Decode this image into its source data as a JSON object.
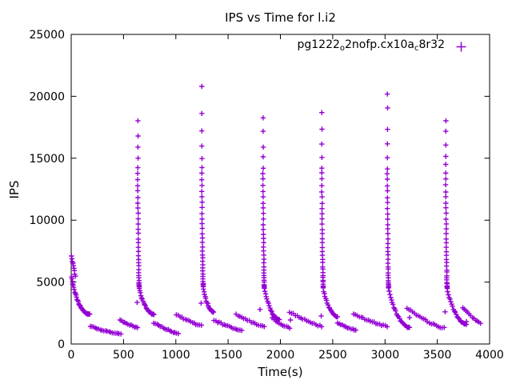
{
  "window": {
    "title": "IPS vs Time for l.i2"
  },
  "chart_data": {
    "type": "scatter",
    "title": "IPS vs Time for l.i2",
    "xlabel": "Time(s)",
    "ylabel": "IPS",
    "xlim": [
      0,
      4000
    ],
    "ylim": [
      0,
      25000
    ],
    "xticks": [
      0,
      500,
      1000,
      1500,
      2000,
      2500,
      3000,
      3500,
      4000
    ],
    "yticks": [
      0,
      5000,
      10000,
      15000,
      20000,
      25000
    ],
    "grid": false,
    "legend_position": "top-right-inside",
    "axis_color": "#000000",
    "background": "#ffffff",
    "cycle_peaks": [
      {
        "t": 0,
        "peak_ips": 7050
      },
      {
        "t": 638,
        "peak_ips": 17950
      },
      {
        "t": 1250,
        "peak_ips": 20740
      },
      {
        "t": 1835,
        "peak_ips": 18340
      },
      {
        "t": 2397,
        "peak_ips": 18660
      },
      {
        "t": 3023,
        "peak_ips": 20150
      },
      {
        "t": 3582,
        "peak_ips": 17950
      }
    ],
    "series": [
      {
        "name": "pg1222o2nofp.cx10ac8r32",
        "label_parts": [
          {
            "text": "pg1222",
            "sub": false
          },
          {
            "text": "o",
            "sub": true
          },
          {
            "text": "2nofp.cx10a",
            "sub": false
          },
          {
            "text": "c",
            "sub": true
          },
          {
            "text": "8r32",
            "sub": false
          }
        ],
        "color": "#9400d3",
        "marker": "plus",
        "segments": [
          {
            "type": "run",
            "t0": 2,
            "t1": 40,
            "ips0": 7050,
            "ips1": 5500,
            "n": 9,
            "tk": 1,
            "yk": 1
          },
          {
            "type": "run",
            "t0": 5,
            "t1": 176,
            "ips0": 5450,
            "ips1": 2400,
            "n": 30,
            "tk": 1.25,
            "yk": 1.9
          },
          {
            "type": "run",
            "t0": 184,
            "t1": 474,
            "ips0": 1430,
            "ips1": 800,
            "n": 19,
            "tk": 1,
            "yk": 1.25
          },
          {
            "type": "run",
            "t0": 466,
            "t1": 636,
            "ips0": 1920,
            "ips1": 1330,
            "n": 12,
            "tk": 1,
            "yk": 1.25
          },
          {
            "type": "col",
            "t": 638,
            "ips": [
              17950,
              16800,
              15950,
              15000,
              14250
            ]
          },
          {
            "type": "run",
            "t0": 636,
            "t1": 650,
            "ips0": 13800,
            "ips1": 4600,
            "n": 30,
            "tk": 1,
            "yk": 1.6
          },
          {
            "type": "run",
            "t0": 650,
            "t1": 790,
            "ips0": 4500,
            "ips1": 2400,
            "n": 20,
            "tk": 1.15,
            "yk": 1.8
          },
          {
            "type": "run",
            "t0": 790,
            "t1": 1022,
            "ips0": 1700,
            "ips1": 860,
            "n": 16,
            "tk": 1,
            "yk": 1.25
          },
          {
            "type": "run",
            "t0": 1005,
            "t1": 1245,
            "ips0": 2380,
            "ips1": 1480,
            "n": 15,
            "tk": 1,
            "yk": 1.25
          },
          {
            "type": "col",
            "t": 1250,
            "ips": [
              20740,
              18600,
              17200,
              15950,
              15000,
              14200
            ]
          },
          {
            "type": "run",
            "t0": 1248,
            "t1": 1262,
            "ips0": 13800,
            "ips1": 4700,
            "n": 30,
            "tk": 1,
            "yk": 1.6
          },
          {
            "type": "run",
            "t0": 1262,
            "t1": 1361,
            "ips0": 4600,
            "ips1": 2590,
            "n": 18,
            "tk": 1.15,
            "yk": 1.8
          },
          {
            "type": "run",
            "t0": 1365,
            "t1": 1630,
            "ips0": 1900,
            "ips1": 1090,
            "n": 17,
            "tk": 1,
            "yk": 1.25
          },
          {
            "type": "run",
            "t0": 1578,
            "t1": 1845,
            "ips0": 2400,
            "ips1": 1430,
            "n": 16,
            "tk": 1,
            "yk": 1.25
          },
          {
            "type": "col",
            "t": 1835,
            "ips": [
              18340,
              17100,
              15950,
              15050,
              14150
            ]
          },
          {
            "type": "run",
            "t0": 1833,
            "t1": 1847,
            "ips0": 13800,
            "ips1": 4600,
            "n": 30,
            "tk": 1,
            "yk": 1.6
          },
          {
            "type": "run",
            "t0": 1847,
            "t1": 1990,
            "ips0": 4500,
            "ips1": 1950,
            "n": 20,
            "tk": 1.15,
            "yk": 1.8
          },
          {
            "type": "run",
            "t0": 1920,
            "t1": 2090,
            "ips0": 2070,
            "ips1": 1300,
            "n": 11,
            "tk": 1,
            "yk": 1.25
          },
          {
            "type": "run",
            "t0": 2088,
            "t1": 2395,
            "ips0": 2590,
            "ips1": 1430,
            "n": 18,
            "tk": 1,
            "yk": 1.25
          },
          {
            "type": "col",
            "t": 2397,
            "ips": [
              18660,
              17300,
              16100,
              15050,
              14150
            ]
          },
          {
            "type": "run",
            "t0": 2395,
            "t1": 2409,
            "ips0": 13800,
            "ips1": 4600,
            "n": 30,
            "tk": 1,
            "yk": 1.6
          },
          {
            "type": "run",
            "t0": 2409,
            "t1": 2545,
            "ips0": 4500,
            "ips1": 2200,
            "n": 19,
            "tk": 1.15,
            "yk": 1.8
          },
          {
            "type": "run",
            "t0": 2545,
            "t1": 2723,
            "ips0": 1750,
            "ips1": 1100,
            "n": 12,
            "tk": 1,
            "yk": 1.25
          },
          {
            "type": "run",
            "t0": 2700,
            "t1": 3020,
            "ips0": 2400,
            "ips1": 1430,
            "n": 19,
            "tk": 1,
            "yk": 1.25
          },
          {
            "type": "col",
            "t": 3023,
            "ips": [
              20150,
              19000,
              17250,
              16100,
              15000,
              14100
            ]
          },
          {
            "type": "run",
            "t0": 3021,
            "t1": 3035,
            "ips0": 13800,
            "ips1": 4600,
            "n": 30,
            "tk": 1,
            "yk": 1.6
          },
          {
            "type": "run",
            "t0": 3035,
            "t1": 3235,
            "ips0": 4500,
            "ips1": 1320,
            "n": 24,
            "tk": 1.15,
            "yk": 1.8
          },
          {
            "type": "run",
            "t0": 3210,
            "t1": 3565,
            "ips0": 2920,
            "ips1": 1300,
            "n": 21,
            "tk": 1,
            "yk": 1.4
          },
          {
            "type": "col",
            "t": 3582,
            "ips": [
              17950,
              17200,
              16080,
              15180,
              14470
            ]
          },
          {
            "type": "run",
            "t0": 3580,
            "t1": 3594,
            "ips0": 13800,
            "ips1": 4600,
            "n": 30,
            "tk": 1,
            "yk": 1.6
          },
          {
            "type": "run",
            "t0": 3594,
            "t1": 3778,
            "ips0": 4500,
            "ips1": 1620,
            "n": 22,
            "tk": 1.15,
            "yk": 1.8
          },
          {
            "type": "run",
            "t0": 3742,
            "t1": 3912,
            "ips0": 2950,
            "ips1": 1700,
            "n": 12,
            "tk": 1,
            "yk": 1.3
          },
          {
            "type": "pts",
            "pts": [
              [
                630,
                3350
              ],
              [
                1242,
                3300
              ],
              [
                1805,
                2790
              ],
              [
                2390,
                2270
              ],
              [
                3575,
                2600
              ],
              [
                176,
                2400
              ],
              [
                787,
                2400
              ],
              [
                1361,
                2590
              ],
              [
                2096,
                1940
              ],
              [
                3235,
                2140
              ],
              [
                3778,
                1810
              ]
            ]
          }
        ]
      }
    ]
  }
}
